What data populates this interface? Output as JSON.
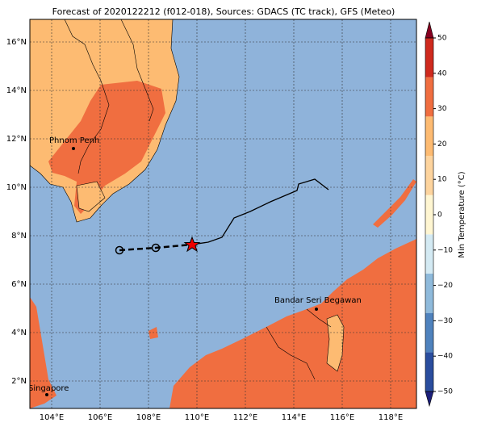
{
  "map": {
    "title": "Forecast of 2020122212 (f012-018), Sources: GDACS (TC track), GFS (Meteo)",
    "lon_ticks": [
      {
        "value": 104,
        "label": "104°E"
      },
      {
        "value": 106,
        "label": "106°E"
      },
      {
        "value": 108,
        "label": "108°E"
      },
      {
        "value": 110,
        "label": "110°E"
      },
      {
        "value": 112,
        "label": "112°E"
      },
      {
        "value": 114,
        "label": "114°E"
      },
      {
        "value": 116,
        "label": "116°E"
      },
      {
        "value": 118,
        "label": "118°E"
      }
    ],
    "lat_ticks": [
      {
        "value": 2,
        "label": "2°N"
      },
      {
        "value": 4,
        "label": "4°N"
      },
      {
        "value": 6,
        "label": "6°N"
      },
      {
        "value": 8,
        "label": "8°N"
      },
      {
        "value": 10,
        "label": "10°N"
      },
      {
        "value": 12,
        "label": "12°N"
      },
      {
        "value": 14,
        "label": "14°N"
      },
      {
        "value": 16,
        "label": "16°N"
      }
    ],
    "places": [
      "Phnom Penh",
      "Bandar Seri Begawan",
      "Singapore"
    ],
    "colorbar": {
      "label": "Min Temperature (°C)",
      "ticks": [
        {
          "value": -50,
          "label": "−50"
        },
        {
          "value": -40,
          "label": "−40"
        },
        {
          "value": -30,
          "label": "−30"
        },
        {
          "value": -20,
          "label": "−20"
        },
        {
          "value": -10,
          "label": "−10"
        },
        0,
        10,
        20,
        30,
        40,
        50
      ],
      "colors": [
        "#1b1f7a",
        "#2a4d9e",
        "#4f82bd",
        "#8fbadb",
        "#d4eaf3",
        "#fff6d2",
        "#fdd49e",
        "#fdbb72",
        "#f06e40",
        "#cf2a1e",
        "#860020"
      ]
    }
  }
}
